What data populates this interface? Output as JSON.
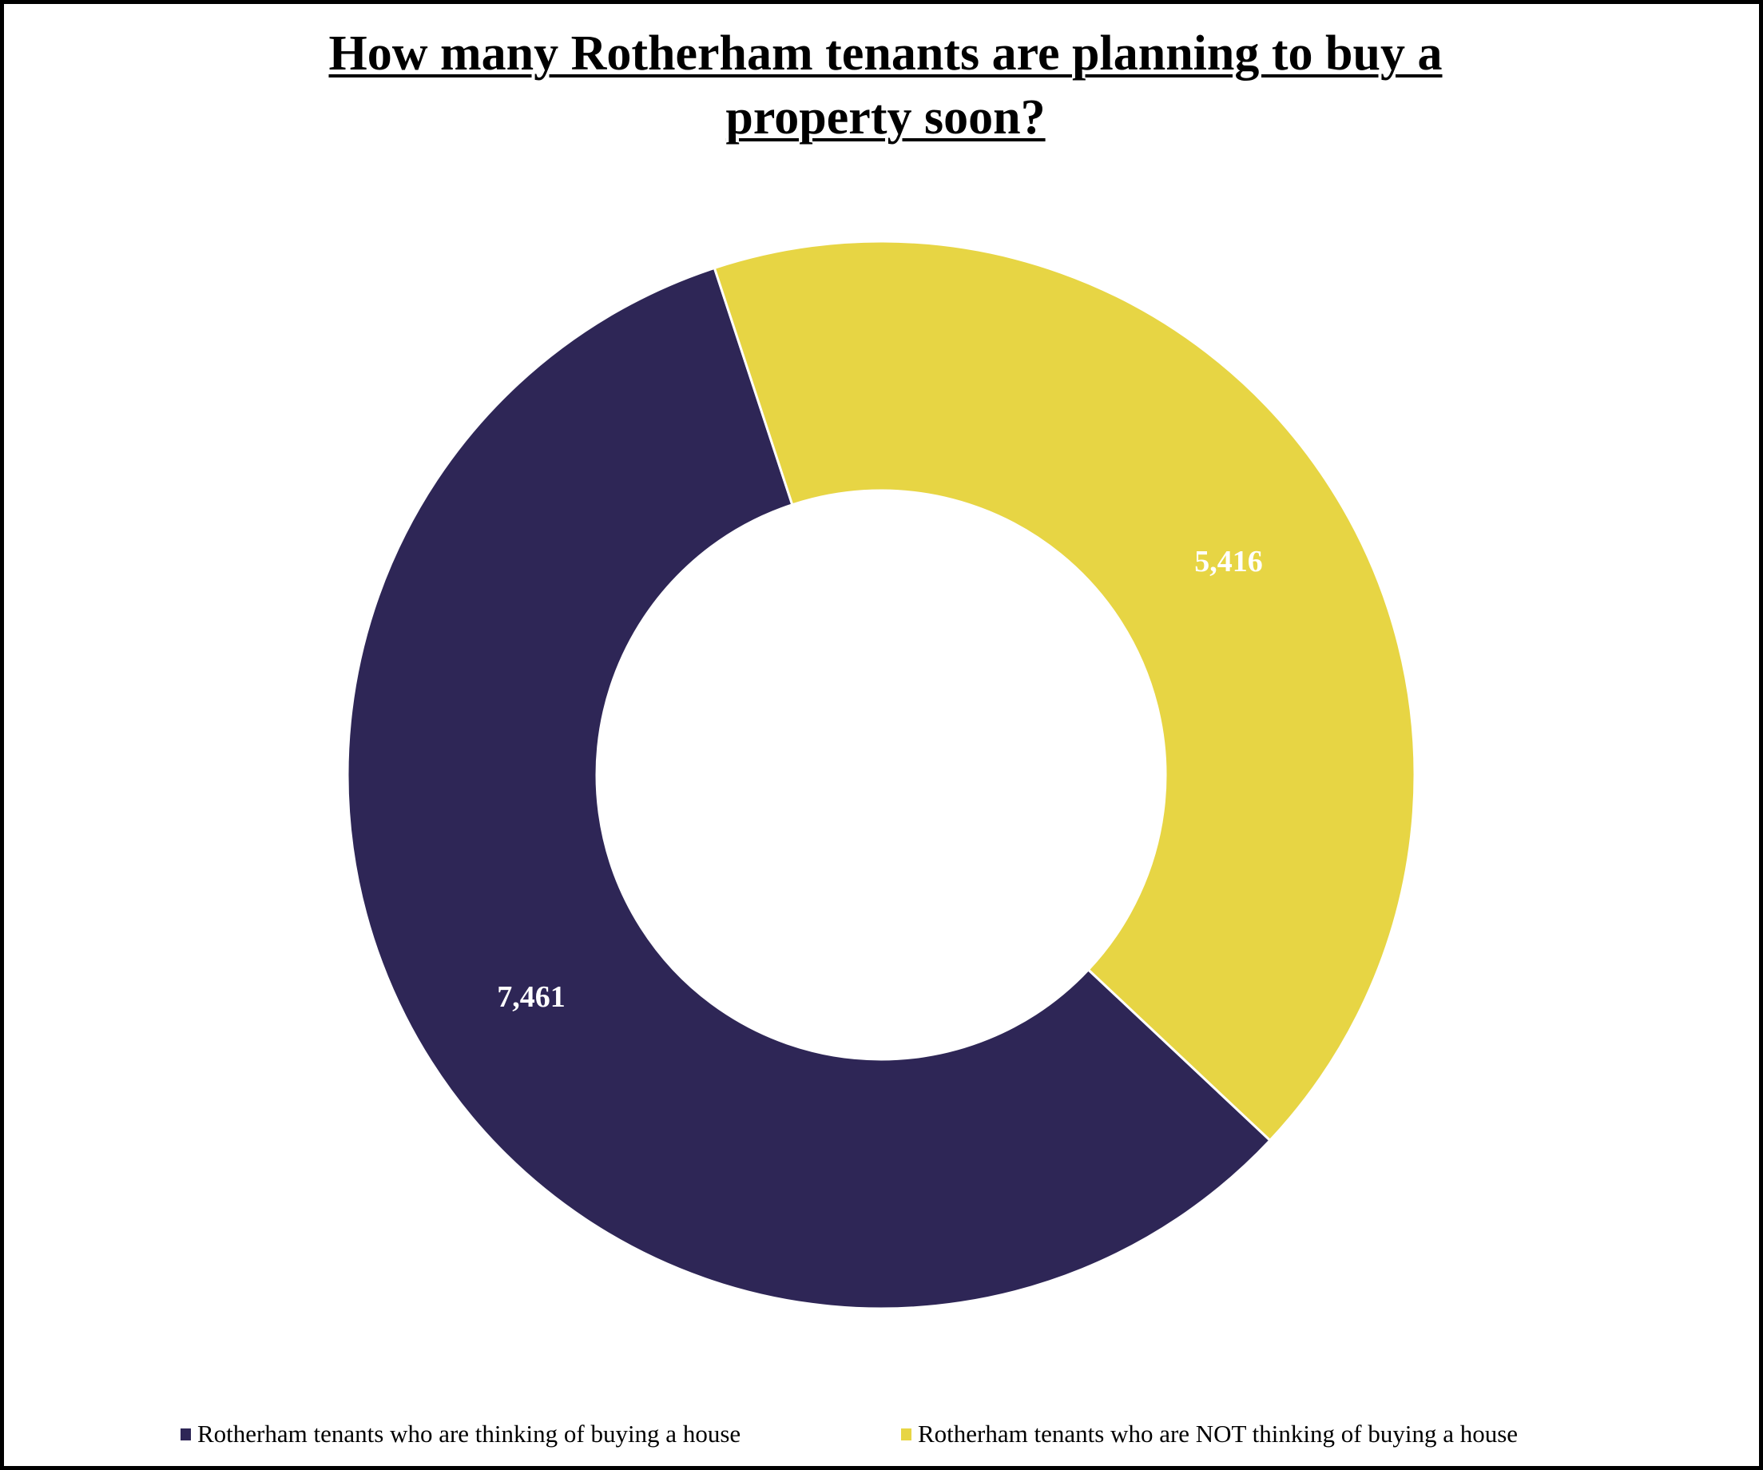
{
  "title": {
    "line1": "How many Rotherham tenants are planning to buy a",
    "line2": "property soon?"
  },
  "colors": {
    "buying": "#2e2656",
    "not_buying": "#e7d544",
    "separator": "#ffffff",
    "border": "#000000"
  },
  "labels": {
    "buying_value": "7,461",
    "not_buying_value": "5,416"
  },
  "legend": {
    "items": [
      {
        "label": "Rotherham tenants who are thinking of buying a house",
        "color": "#2e2656"
      },
      {
        "label": "Rotherham tenants who are NOT thinking of buying a house",
        "color": "#e7d544"
      }
    ]
  },
  "chart_data": {
    "type": "pie",
    "subtype": "donut",
    "title": "How many Rotherham tenants are planning to buy a property soon?",
    "categories": [
      "Rotherham tenants who are thinking of buying a house",
      "Rotherham tenants who are NOT thinking of buying a house"
    ],
    "values": [
      7461,
      5416
    ],
    "value_labels": [
      "7,461",
      "5,416"
    ],
    "colors": [
      "#2e2656",
      "#e7d544"
    ],
    "legend_position": "bottom",
    "xlabel": "",
    "ylabel": ""
  }
}
